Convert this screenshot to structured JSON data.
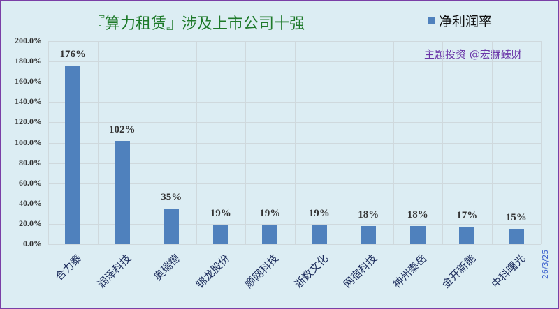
{
  "chart_data": {
    "type": "bar",
    "title": "『算力租赁』涉及上市公司十强",
    "categories": [
      "合力泰",
      "润泽科技",
      "奥瑞德",
      "锦龙股份",
      "顺网科技",
      "浙数文化",
      "网宿科技",
      "神州泰岳",
      "金开新能",
      "中科曙光"
    ],
    "series": [
      {
        "name": "净利润率",
        "values": [
          176,
          102,
          35,
          19,
          19,
          19,
          18,
          18,
          17,
          15
        ],
        "color": "#4f81bd"
      }
    ],
    "data_labels": [
      "176%",
      "102%",
      "35%",
      "19%",
      "19%",
      "19%",
      "18%",
      "18%",
      "17%",
      "15%"
    ],
    "xlabel": "",
    "ylabel": "",
    "ylim": [
      0,
      200
    ],
    "yticks": [
      "0.0%",
      "20.0%",
      "40.0%",
      "60.0%",
      "80.0%",
      "100.0%",
      "120.0%",
      "140.0%",
      "160.0%",
      "180.0%",
      "200.0%"
    ],
    "grid": true,
    "legend_position": "top-right"
  },
  "title": "『算力租赁』涉及上市公司十强",
  "legend": {
    "label": "净利润率",
    "color": "#4f81bd"
  },
  "watermark": "主题投资 @宏赫臻财",
  "date": "26/3/25"
}
